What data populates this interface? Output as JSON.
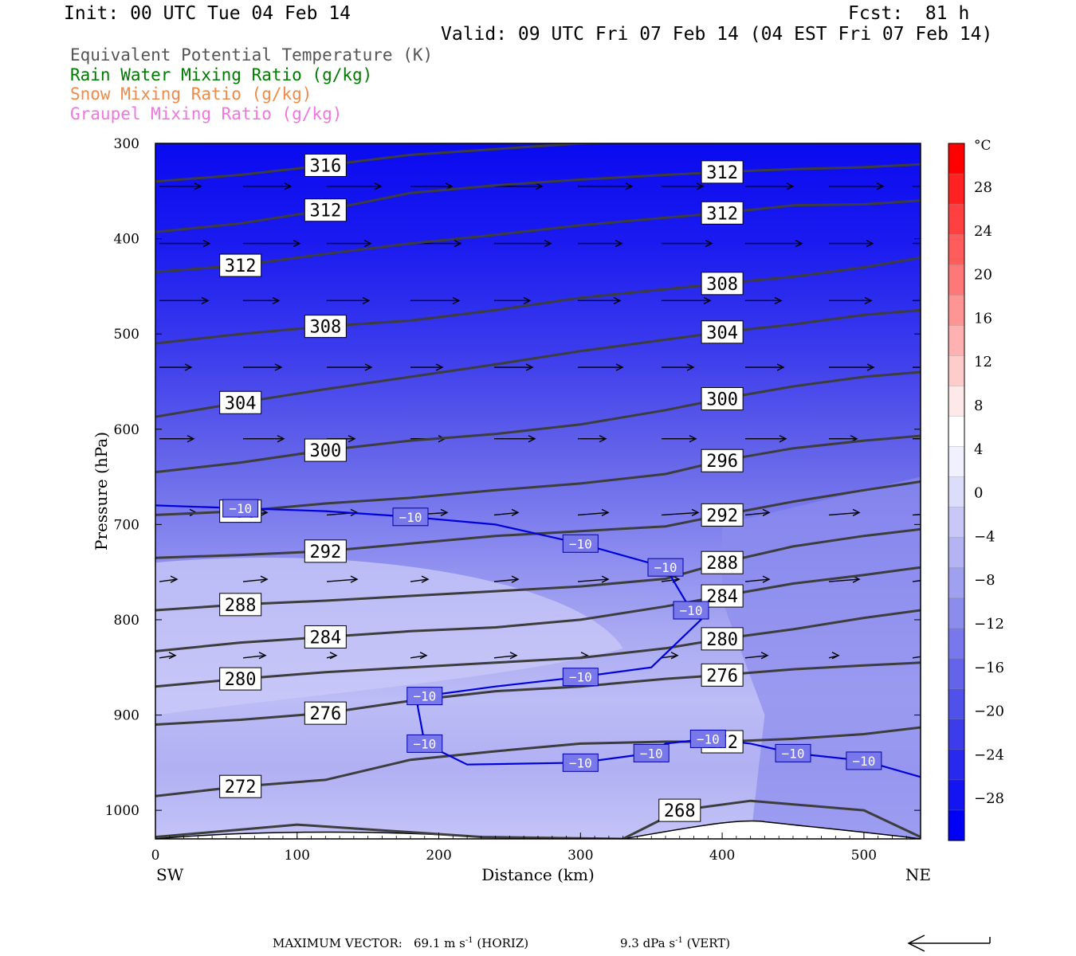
{
  "header": {
    "init": "Init: 00 UTC Tue 04 Feb 14",
    "fcst": "Fcst:  81 h",
    "valid": "Valid: 09 UTC Fri 07 Feb 14 (04 EST Fri 07 Feb 14)"
  },
  "legend": [
    {
      "label": "Equivalent Potential Temperature (K)",
      "color": "#555555"
    },
    {
      "label": "Rain Water Mixing Ratio (g/kg)",
      "color": "#007a00"
    },
    {
      "label": "Snow Mixing Ratio (g/kg)",
      "color": "#f08a4b"
    },
    {
      "label": "Graupel Mixing Ratio (g/kg)",
      "color": "#f075e0"
    }
  ],
  "footer": {
    "max_vector_label": "MAXIMUM VECTOR:",
    "horiz_value": "69.1 m s",
    "horiz_unit": "(HORIZ)",
    "vert_value": "9.3 dPa s",
    "vert_unit": "(VERT)",
    "exponent": "-1"
  },
  "chart_data": {
    "type": "cross-section",
    "xlabel": "Distance (km)",
    "ylabel": "Pressure (hPa)",
    "xlim": [
      0,
      540
    ],
    "ylim": [
      300,
      1030
    ],
    "x_ticks": [
      0,
      100,
      200,
      300,
      400,
      500
    ],
    "y_ticks": [
      300,
      400,
      500,
      600,
      700,
      800,
      900,
      1000
    ],
    "left_end_label": "SW",
    "right_end_label": "NE",
    "colorbar": {
      "unit": "°C",
      "tick_labels": [
        "28",
        "24",
        "20",
        "16",
        "12",
        "8",
        "4",
        "0",
        "−4",
        "−8",
        "−12",
        "−16",
        "−20",
        "−24",
        "−28"
      ],
      "colors": [
        "#ff0000",
        "#ff2222",
        "#ff4040",
        "#ff5c5c",
        "#ff7878",
        "#ff9494",
        "#ffb0b0",
        "#ffcccc",
        "#ffe8e8",
        "#ffffff",
        "#f0f0ff",
        "#dcdcfb",
        "#c8c8f8",
        "#b4b4f4",
        "#a0a0f0",
        "#8c8cee",
        "#7878ec",
        "#6464ea",
        "#5050ea",
        "#3c3cea",
        "#2828ee",
        "#1414f2",
        "#0000f5"
      ]
    },
    "theta_e_contours": [
      {
        "label": "316",
        "points": [
          [
            0,
            340
          ],
          [
            60,
            333
          ],
          [
            120,
            323
          ],
          [
            180,
            312
          ],
          [
            240,
            306
          ],
          [
            300,
            300
          ],
          [
            400,
            295
          ],
          [
            540,
            293
          ]
        ]
      },
      {
        "label": "312",
        "points": [
          [
            0,
            393
          ],
          [
            60,
            384
          ],
          [
            120,
            370
          ],
          [
            180,
            352
          ],
          [
            240,
            344
          ],
          [
            300,
            338
          ],
          [
            360,
            333
          ],
          [
            400,
            330
          ],
          [
            450,
            327
          ],
          [
            500,
            325
          ],
          [
            540,
            322
          ]
        ]
      },
      {
        "label": "312",
        "points": [
          [
            0,
            435
          ],
          [
            60,
            428
          ],
          [
            120,
            416
          ],
          [
            180,
            405
          ],
          [
            240,
            396
          ],
          [
            300,
            386
          ],
          [
            360,
            378
          ],
          [
            400,
            373
          ],
          [
            450,
            365
          ],
          [
            500,
            364
          ],
          [
            540,
            360
          ]
        ]
      },
      {
        "label": "308",
        "points": [
          [
            0,
            510
          ],
          [
            60,
            500
          ],
          [
            120,
            492
          ],
          [
            180,
            486
          ],
          [
            240,
            475
          ],
          [
            300,
            462
          ],
          [
            360,
            453
          ],
          [
            400,
            447
          ],
          [
            450,
            440
          ],
          [
            500,
            430
          ],
          [
            540,
            420
          ]
        ]
      },
      {
        "label": "304",
        "points": [
          [
            0,
            587
          ],
          [
            60,
            572
          ],
          [
            120,
            558
          ],
          [
            180,
            545
          ],
          [
            240,
            532
          ],
          [
            300,
            518
          ],
          [
            360,
            506
          ],
          [
            400,
            498
          ],
          [
            450,
            490
          ],
          [
            500,
            480
          ],
          [
            540,
            475
          ]
        ]
      },
      {
        "label": "300",
        "points": [
          [
            0,
            645
          ],
          [
            60,
            635
          ],
          [
            120,
            622
          ],
          [
            180,
            612
          ],
          [
            240,
            605
          ],
          [
            300,
            595
          ],
          [
            360,
            580
          ],
          [
            400,
            568
          ],
          [
            450,
            555
          ],
          [
            500,
            545
          ],
          [
            540,
            540
          ]
        ]
      },
      {
        "label": "296",
        "points": [
          [
            0,
            690
          ],
          [
            60,
            686
          ],
          [
            120,
            678
          ],
          [
            180,
            672
          ],
          [
            240,
            664
          ],
          [
            300,
            657
          ],
          [
            360,
            647
          ],
          [
            400,
            633
          ],
          [
            450,
            620
          ],
          [
            500,
            612
          ],
          [
            540,
            607
          ]
        ]
      },
      {
        "label": "292",
        "points": [
          [
            0,
            735
          ],
          [
            60,
            732
          ],
          [
            120,
            728
          ],
          [
            180,
            720
          ],
          [
            240,
            712
          ],
          [
            300,
            707
          ],
          [
            360,
            702
          ],
          [
            400,
            690
          ],
          [
            450,
            676
          ],
          [
            500,
            664
          ],
          [
            540,
            655
          ]
        ]
      },
      {
        "label": "288",
        "points": [
          [
            0,
            790
          ],
          [
            60,
            784
          ],
          [
            120,
            780
          ],
          [
            180,
            775
          ],
          [
            240,
            770
          ],
          [
            300,
            765
          ],
          [
            360,
            757
          ],
          [
            400,
            740
          ],
          [
            450,
            723
          ],
          [
            500,
            712
          ],
          [
            540,
            705
          ]
        ]
      },
      {
        "label": "284",
        "points": [
          [
            0,
            833
          ],
          [
            60,
            824
          ],
          [
            120,
            818
          ],
          [
            180,
            812
          ],
          [
            240,
            808
          ],
          [
            300,
            800
          ],
          [
            360,
            786
          ],
          [
            400,
            775
          ],
          [
            450,
            762
          ],
          [
            500,
            753
          ],
          [
            540,
            745
          ]
        ]
      },
      {
        "label": "280",
        "points": [
          [
            0,
            870
          ],
          [
            60,
            862
          ],
          [
            120,
            855
          ],
          [
            180,
            850
          ],
          [
            240,
            845
          ],
          [
            300,
            840
          ],
          [
            360,
            830
          ],
          [
            400,
            820
          ],
          [
            450,
            810
          ],
          [
            500,
            798
          ],
          [
            540,
            790
          ]
        ]
      },
      {
        "label": "276",
        "points": [
          [
            0,
            910
          ],
          [
            60,
            905
          ],
          [
            120,
            898
          ],
          [
            180,
            885
          ],
          [
            240,
            875
          ],
          [
            300,
            870
          ],
          [
            360,
            862
          ],
          [
            400,
            858
          ],
          [
            450,
            852
          ],
          [
            500,
            848
          ],
          [
            540,
            845
          ]
        ]
      },
      {
        "label": "272",
        "points": [
          [
            0,
            985
          ],
          [
            60,
            975
          ],
          [
            120,
            968
          ],
          [
            180,
            947
          ],
          [
            240,
            938
          ],
          [
            300,
            930
          ],
          [
            360,
            928
          ],
          [
            400,
            928
          ],
          [
            450,
            925
          ],
          [
            500,
            920
          ],
          [
            540,
            913
          ]
        ]
      },
      {
        "label": "268",
        "points": [
          [
            0,
            1028
          ],
          [
            100,
            1015
          ],
          [
            230,
            1028
          ],
          [
            330,
            1030
          ],
          [
            370,
            1000
          ],
          [
            420,
            990
          ],
          [
            500,
            1000
          ],
          [
            540,
            1028
          ]
        ]
      }
    ],
    "isotherm": {
      "label": "−10",
      "points": [
        [
          0,
          680
        ],
        [
          60,
          683
        ],
        [
          120,
          686
        ],
        [
          180,
          692
        ],
        [
          240,
          700
        ],
        [
          300,
          720
        ],
        [
          360,
          745
        ],
        [
          378,
          790
        ],
        [
          385,
          800
        ],
        [
          350,
          850
        ],
        [
          300,
          860
        ],
        [
          240,
          870
        ],
        [
          190,
          880
        ],
        [
          185,
          890
        ],
        [
          190,
          930
        ],
        [
          220,
          952
        ],
        [
          300,
          950
        ],
        [
          350,
          940
        ],
        [
          360,
          930
        ],
        [
          390,
          925
        ],
        [
          420,
          930
        ],
        [
          450,
          940
        ],
        [
          500,
          948
        ],
        [
          540,
          965
        ]
      ]
    }
  }
}
